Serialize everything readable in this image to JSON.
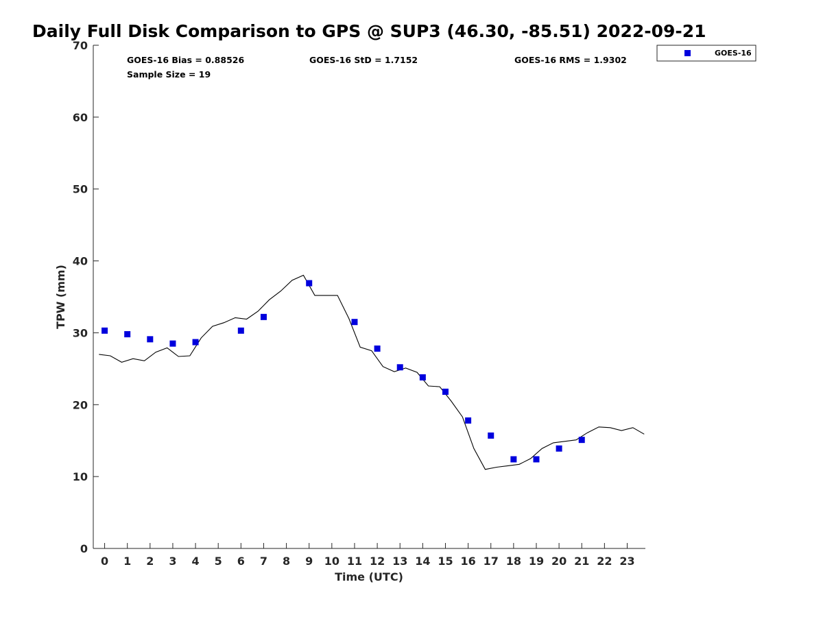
{
  "chart_data": {
    "type": "scatter",
    "title": "Daily Full Disk Comparison to GPS @ SUP3 (46.30, -85.51) 2022-09-21",
    "xlabel": "Time (UTC)",
    "ylabel": "TPW (mm)",
    "xlim": [
      -0.5,
      23.8
    ],
    "ylim": [
      0,
      70
    ],
    "xticks": [
      0,
      1,
      2,
      3,
      4,
      5,
      6,
      7,
      8,
      9,
      10,
      11,
      12,
      13,
      14,
      15,
      16,
      17,
      18,
      19,
      20,
      21,
      22,
      23
    ],
    "yticks": [
      0,
      10,
      20,
      30,
      40,
      50,
      60,
      70
    ],
    "grid": false,
    "legend": {
      "position": "top-right",
      "entries": [
        "GOES-16"
      ]
    },
    "stats": {
      "bias": "GOES-16 Bias = 0.88526",
      "std": "GOES-16 StD = 1.7152",
      "rms": "GOES-16 RMS = 1.9302",
      "sample": "Sample Size = 19"
    },
    "series": [
      {
        "name": "GOES-16",
        "kind": "scatter",
        "color": "#0000dd",
        "x": [
          0,
          1,
          2,
          3,
          4,
          6,
          7,
          9,
          11,
          12,
          13,
          14,
          15,
          16,
          17,
          18,
          19,
          20,
          21
        ],
        "y": [
          30.3,
          29.8,
          29.1,
          28.5,
          28.7,
          30.3,
          32.2,
          36.9,
          31.5,
          27.8,
          25.2,
          23.8,
          21.8,
          17.8,
          15.7,
          12.4,
          12.4,
          13.9,
          15.1
        ]
      },
      {
        "kind": "line",
        "color": "#000000",
        "x": [
          -0.25,
          0.25,
          0.75,
          1.25,
          1.75,
          2.25,
          2.75,
          3.25,
          3.75,
          4.25,
          4.75,
          5.25,
          5.75,
          6.25,
          6.75,
          7.25,
          7.75,
          8.25,
          8.75,
          9.25,
          9.75,
          10.25,
          10.75,
          11.25,
          11.75,
          12.25,
          12.75,
          13.25,
          13.75,
          14.25,
          14.75,
          15.25,
          15.75,
          16.25,
          16.75,
          17.25,
          17.75,
          18.25,
          18.75,
          19.25,
          19.75,
          20.25,
          20.75,
          21.25,
          21.75,
          22.25,
          22.75,
          23.25,
          23.75
        ],
        "y": [
          27.0,
          26.8,
          25.9,
          26.4,
          26.1,
          27.3,
          27.9,
          26.7,
          26.8,
          29.3,
          30.9,
          31.4,
          32.1,
          31.9,
          33.0,
          34.6,
          35.8,
          37.3,
          38.0,
          35.2,
          35.2,
          35.2,
          32.0,
          28.0,
          27.5,
          25.3,
          24.6,
          25.1,
          24.5,
          22.6,
          22.5,
          20.5,
          18.3,
          13.9,
          11.0,
          11.3,
          11.5,
          11.7,
          12.5,
          13.9,
          14.7,
          14.9,
          15.1,
          16.1,
          16.9,
          16.8,
          16.4,
          16.8,
          15.9
        ]
      }
    ]
  }
}
